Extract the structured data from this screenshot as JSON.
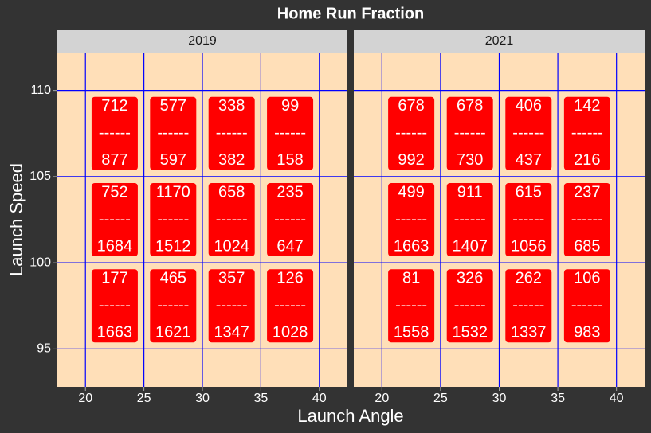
{
  "chart_data": {
    "type": "label",
    "title": "Home Run Fraction",
    "x_label": "Launch Angle",
    "y_label": "Launch Speed",
    "xlim": [
      17.6,
      42.4
    ],
    "ylim": [
      92.8,
      112.2
    ],
    "xticks": [
      20,
      25,
      30,
      35,
      40
    ],
    "yticks": [
      95,
      100,
      105,
      110
    ],
    "grid": true,
    "grid_color": "#0000ff",
    "panel_color": "#ffdfb8",
    "label_color": "#ff0000",
    "separator": "------",
    "facets": [
      {
        "name": "2019",
        "x": [
          22.5,
          27.5,
          32.5,
          37.5,
          22.5,
          27.5,
          32.5,
          37.5,
          22.5,
          27.5,
          32.5,
          37.5
        ],
        "y": [
          107.5,
          107.5,
          107.5,
          107.5,
          102.5,
          102.5,
          102.5,
          102.5,
          97.5,
          97.5,
          97.5,
          97.5
        ],
        "numerators": [
          712,
          577,
          338,
          99,
          752,
          1170,
          658,
          235,
          177,
          465,
          357,
          126
        ],
        "denominators": [
          877,
          597,
          382,
          158,
          1684,
          1512,
          1024,
          647,
          1663,
          1621,
          1347,
          1028
        ]
      },
      {
        "name": "2021",
        "x": [
          22.5,
          27.5,
          32.5,
          37.5,
          22.5,
          27.5,
          32.5,
          37.5,
          22.5,
          27.5,
          32.5,
          37.5
        ],
        "y": [
          107.5,
          107.5,
          107.5,
          107.5,
          102.5,
          102.5,
          102.5,
          102.5,
          97.5,
          97.5,
          97.5,
          97.5
        ],
        "numerators": [
          678,
          678,
          406,
          142,
          499,
          911,
          615,
          237,
          81,
          326,
          262,
          106
        ],
        "denominators": [
          992,
          730,
          437,
          216,
          1663,
          1407,
          1056,
          685,
          1558,
          1532,
          1337,
          983
        ]
      }
    ]
  }
}
